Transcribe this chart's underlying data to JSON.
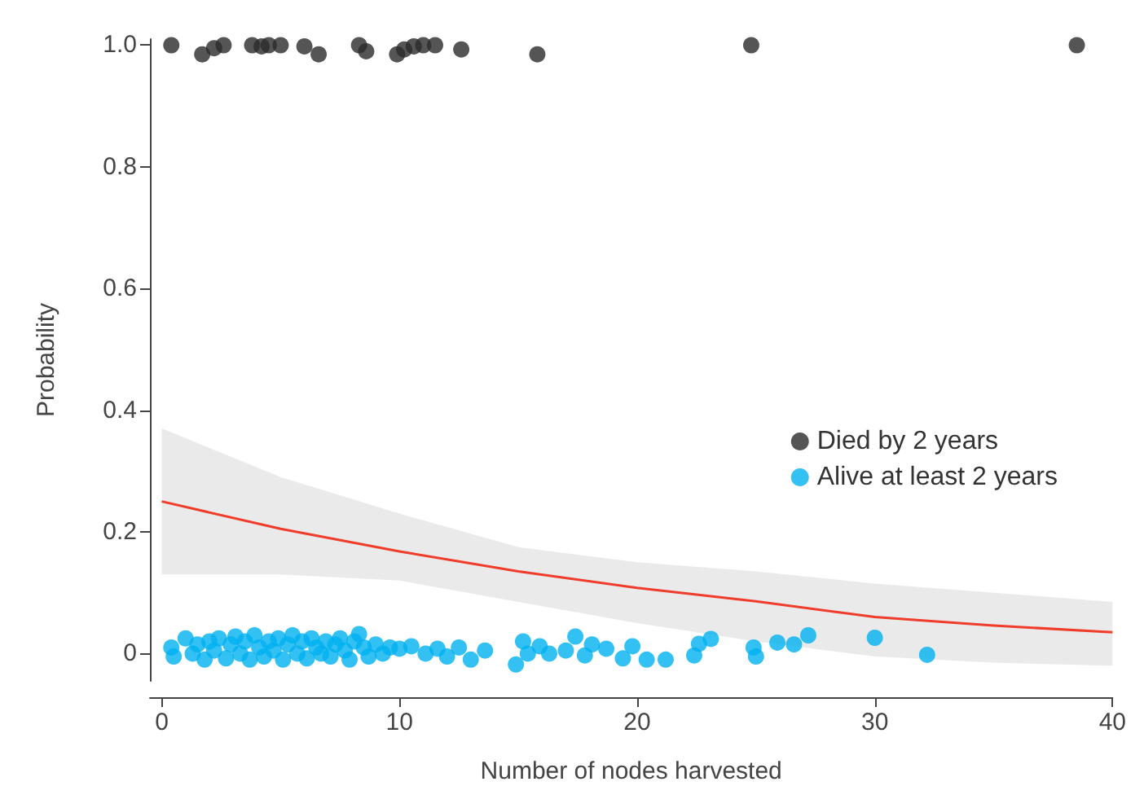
{
  "chart_data": {
    "type": "scatter",
    "xlabel": "Number of nodes harvested",
    "ylabel": "Probability",
    "xlim": [
      -0.5,
      40
    ],
    "xticks": [
      0,
      10,
      20,
      30,
      40
    ],
    "ylim": [
      -0.045,
      1.01
    ],
    "yticks": [
      0,
      0.2,
      0.4,
      0.6,
      0.8,
      {
        "value": 1,
        "label": "1.0"
      }
    ],
    "grid": false,
    "legend": "right",
    "marker": "circle",
    "series": [
      {
        "name": "Died by 2 years",
        "color": "#2b2b2b",
        "x": [
          0.4,
          1.7,
          2.2,
          2.6,
          3.8,
          4.2,
          4.5,
          5.0,
          6.0,
          6.6,
          8.3,
          8.6,
          9.9,
          10.2,
          10.6,
          11.0,
          11.5,
          12.6,
          15.8,
          24.8,
          38.5
        ],
        "values": [
          1.0,
          0.985,
          0.995,
          1.0,
          1.0,
          0.998,
          1.0,
          1.0,
          0.998,
          0.985,
          1.0,
          0.99,
          0.985,
          0.993,
          0.998,
          1.0,
          1.0,
          0.993,
          0.985,
          1.0,
          1.0
        ]
      },
      {
        "name": "Alive at least 2 years",
        "color": "#00b0f0",
        "x": [
          0.4,
          0.5,
          1.0,
          1.3,
          1.5,
          1.8,
          2.0,
          2.2,
          2.4,
          2.7,
          2.9,
          3.1,
          3.3,
          3.5,
          3.7,
          3.9,
          4.1,
          4.3,
          4.5,
          4.7,
          4.9,
          5.1,
          5.3,
          5.5,
          5.7,
          5.9,
          6.1,
          6.3,
          6.5,
          6.7,
          6.9,
          7.1,
          7.3,
          7.5,
          7.7,
          7.9,
          8.1,
          8.3,
          8.5,
          8.7,
          9.0,
          9.3,
          9.6,
          10.0,
          10.5,
          11.1,
          11.6,
          12.0,
          12.5,
          13.0,
          13.6,
          14.9,
          15.2,
          15.4,
          15.9,
          16.3,
          17.0,
          17.4,
          17.8,
          18.1,
          18.7,
          19.4,
          19.8,
          20.4,
          21.2,
          22.4,
          22.6,
          23.1,
          24.9,
          25.0,
          25.9,
          26.6,
          27.2,
          30.0,
          32.2
        ],
        "values": [
          0.01,
          -0.005,
          0.025,
          0.0,
          0.015,
          -0.01,
          0.02,
          0.005,
          0.025,
          -0.008,
          0.015,
          0.028,
          0.0,
          0.02,
          -0.01,
          0.03,
          0.01,
          -0.005,
          0.02,
          0.005,
          0.025,
          -0.01,
          0.015,
          0.03,
          0.0,
          0.02,
          -0.008,
          0.025,
          0.01,
          0.0,
          0.02,
          -0.005,
          0.015,
          0.025,
          0.005,
          -0.01,
          0.02,
          0.032,
          0.01,
          -0.005,
          0.015,
          0.0,
          0.01,
          0.008,
          0.012,
          0.0,
          0.008,
          -0.005,
          0.01,
          -0.01,
          0.005,
          -0.018,
          0.02,
          0.0,
          0.012,
          0.0,
          0.005,
          0.028,
          -0.003,
          0.015,
          0.008,
          -0.008,
          0.012,
          -0.01,
          -0.01,
          -0.003,
          0.016,
          0.024,
          0.01,
          -0.005,
          0.018,
          0.015,
          0.03,
          0.026,
          -0.002
        ]
      },
      {
        "type": "line",
        "color": "#f03c2a",
        "marker": "none",
        "x": [
          0,
          5,
          10,
          15,
          20,
          25,
          30,
          35,
          40
        ],
        "values": [
          0.25,
          0.205,
          0.168,
          0.135,
          0.108,
          0.086,
          0.06,
          0.046,
          0.035
        ],
        "lower": [
          0.13,
          0.13,
          0.12,
          0.085,
          0.05,
          0.02,
          -0.005,
          -0.015,
          -0.02
        ],
        "upper": [
          0.37,
          0.29,
          0.23,
          0.175,
          0.15,
          0.135,
          0.115,
          0.1,
          0.085
        ]
      }
    ]
  }
}
